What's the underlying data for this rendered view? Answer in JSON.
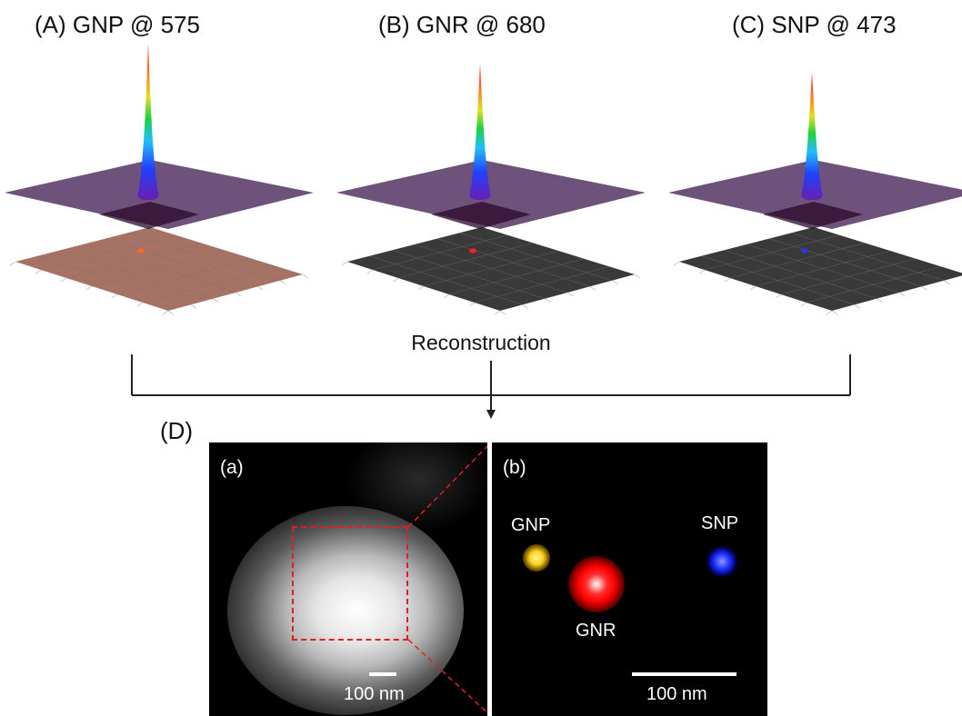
{
  "panels": [
    {
      "title": "(A) GNP @ 575",
      "base_color": "#a06a5c",
      "spot_color": "#ff6a2a"
    },
    {
      "title": "(B) GNR @ 680",
      "base_color": "#2e2e2e",
      "spot_color": "#ff2020"
    },
    {
      "title": "(C) SNP @ 473",
      "base_color": "#2e2e2e",
      "spot_color": "#3030ff"
    }
  ],
  "reconstruction_label": "Reconstruction",
  "panel_d": {
    "label": "(D)",
    "a": {
      "label": "(a)",
      "scale_label": "100 nm"
    },
    "b": {
      "label": "(b)",
      "scale_label": "100 nm",
      "particles": [
        {
          "name": "GNP",
          "color": "#ffd21a"
        },
        {
          "name": "GNR",
          "color": "#ff1a1a"
        },
        {
          "name": "SNP",
          "color": "#1a2bff"
        }
      ]
    }
  },
  "colors": {
    "zoom_box": "#e02020",
    "plane": "#5a3a6a"
  }
}
